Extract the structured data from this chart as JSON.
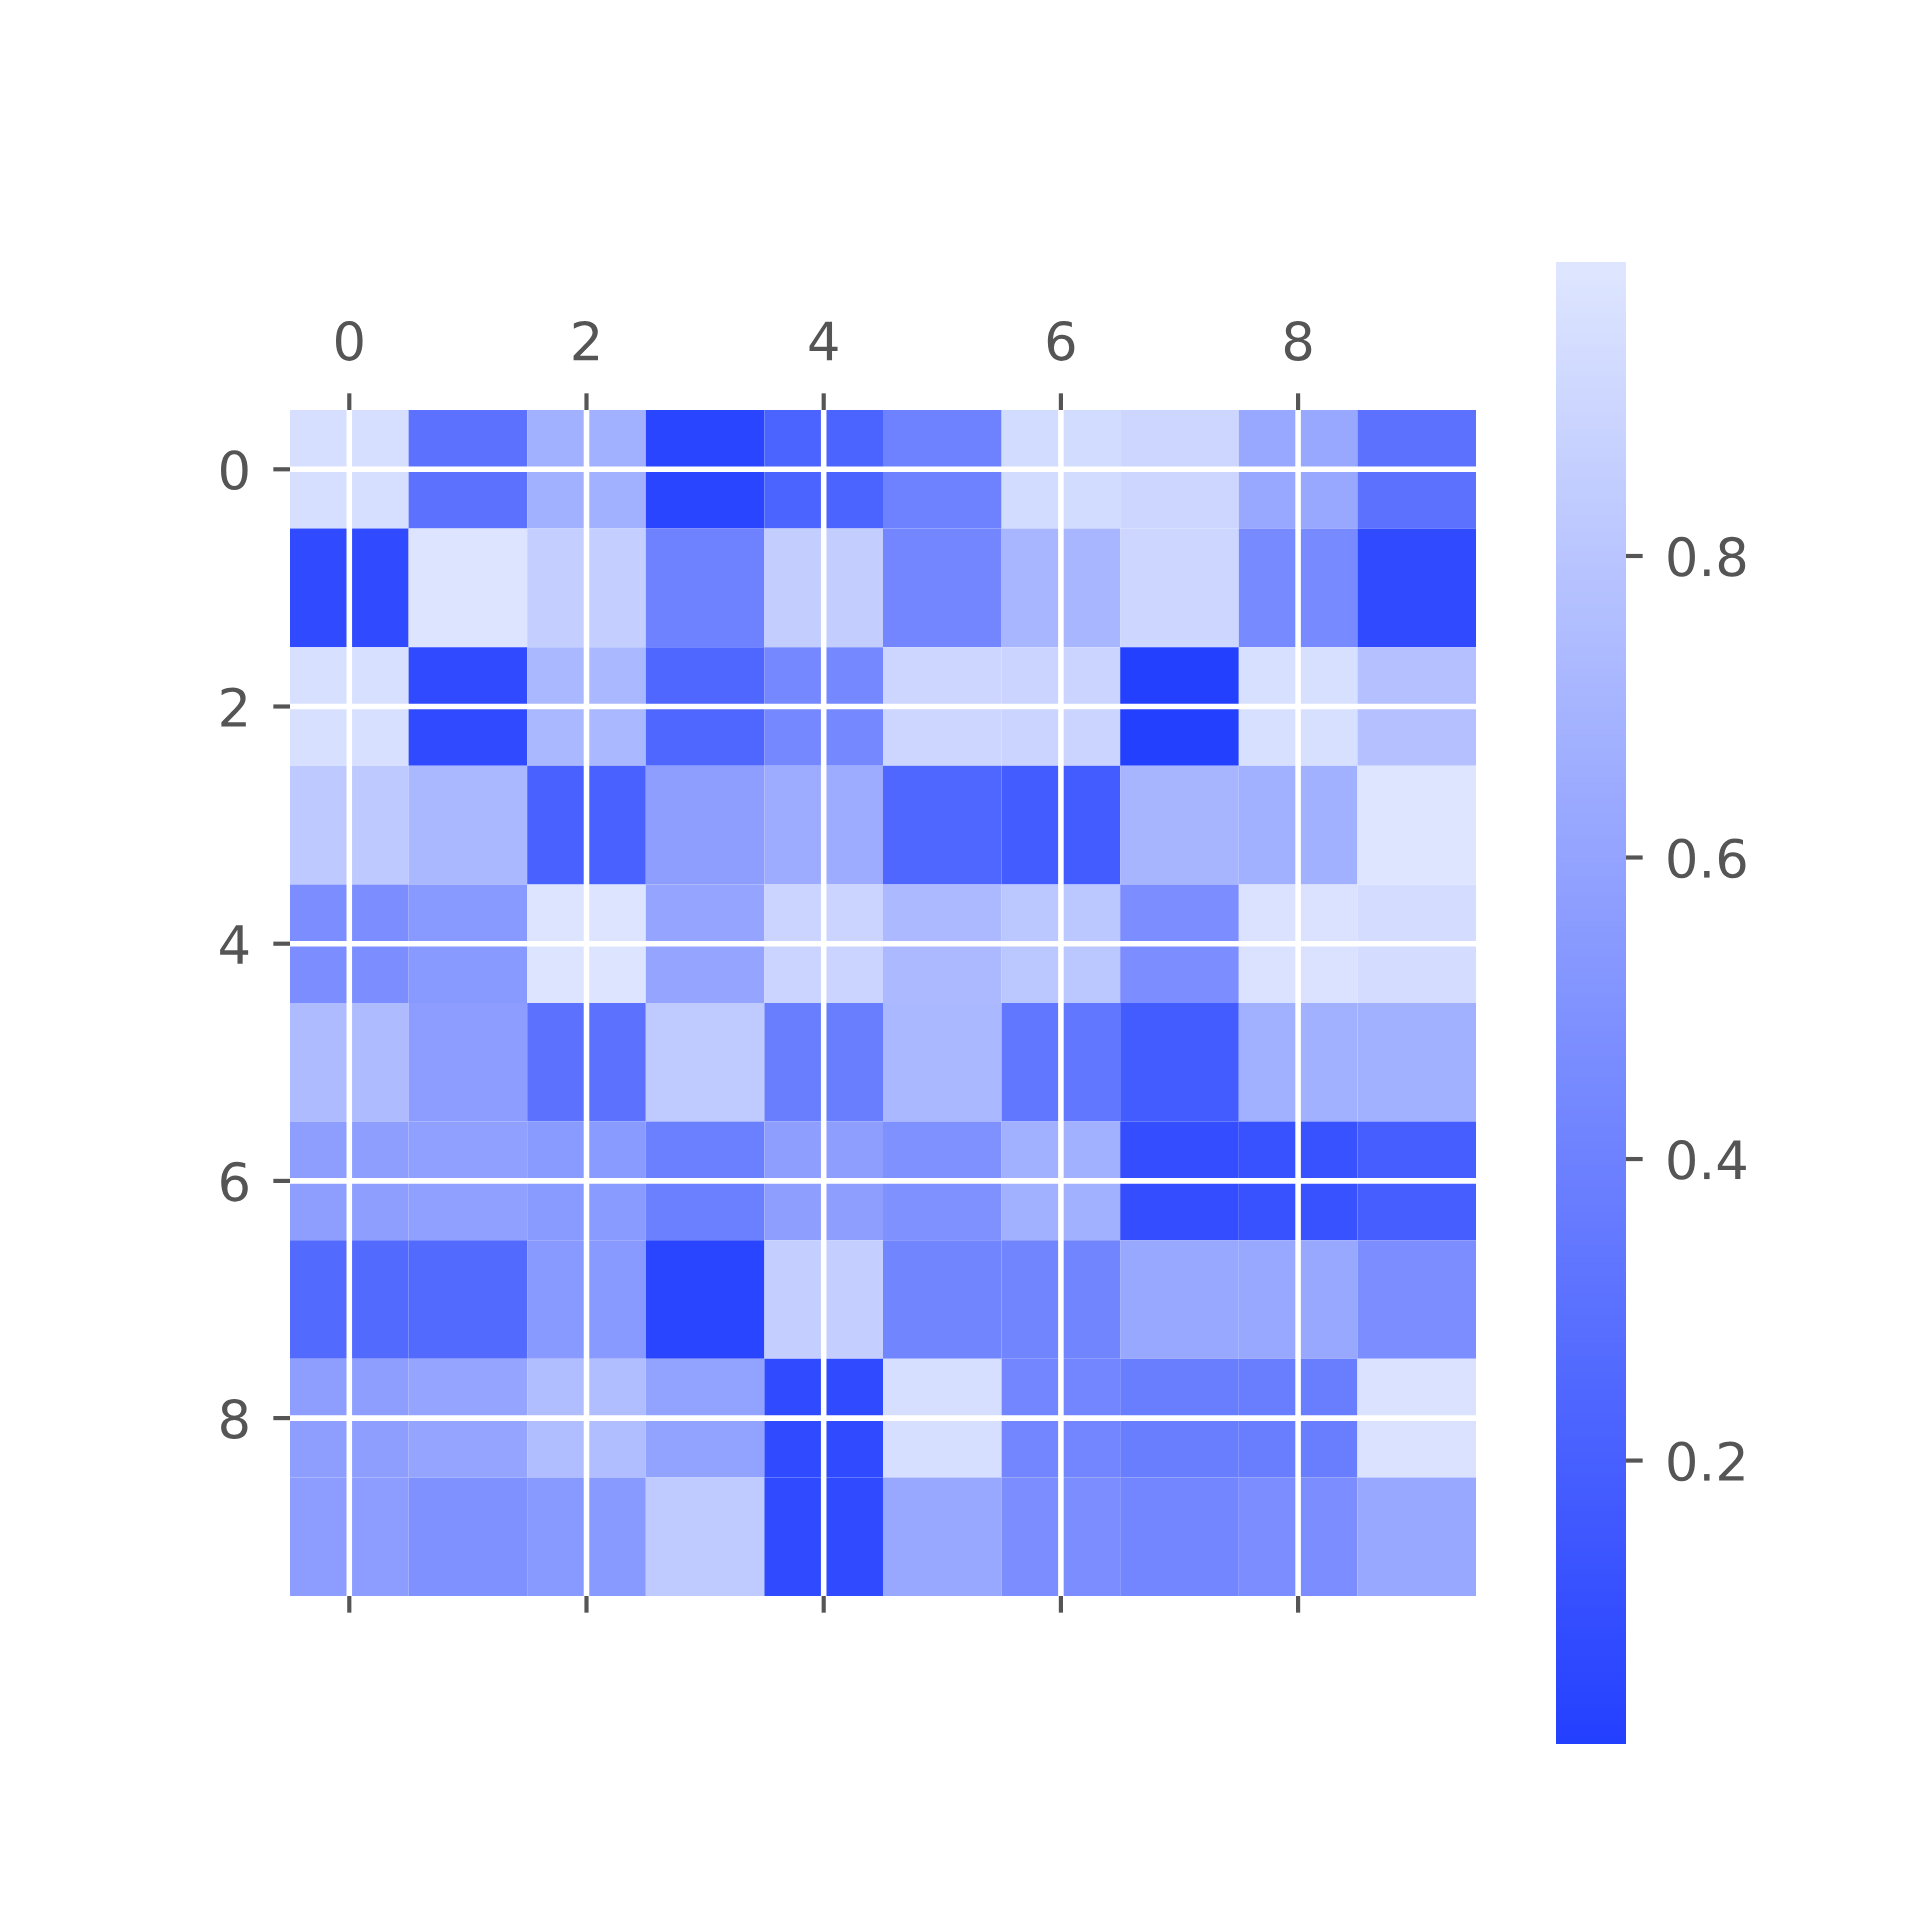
{
  "chart_data": {
    "type": "heatmap",
    "categories": [
      "0",
      null,
      "2",
      null,
      "4",
      null,
      "6",
      null,
      "8",
      null
    ],
    "y_categories": [
      "0",
      null,
      "2",
      null,
      "4",
      null,
      "6",
      null,
      "8",
      null
    ],
    "cells": [
      [
        0.95,
        0.31,
        0.68,
        0.04,
        0.22,
        0.4,
        0.93,
        0.9,
        0.63,
        0.31
      ],
      [
        0.07,
        0.98,
        0.86,
        0.4,
        0.85,
        0.43,
        0.71,
        0.9,
        0.45,
        0.07
      ],
      [
        0.96,
        0.08,
        0.72,
        0.24,
        0.44,
        0.9,
        0.89,
        0.012,
        0.96,
        0.77
      ],
      [
        0.82,
        0.72,
        0.21,
        0.57,
        0.65,
        0.24,
        0.18,
        0.7,
        0.68,
        0.99
      ],
      [
        0.47,
        0.54,
        0.98,
        0.6,
        0.89,
        0.73,
        0.81,
        0.47,
        0.97,
        0.94
      ],
      [
        0.74,
        0.56,
        0.31,
        0.83,
        0.38,
        0.72,
        0.34,
        0.18,
        0.68,
        0.68
      ],
      [
        0.57,
        0.58,
        0.55,
        0.39,
        0.57,
        0.49,
        0.68,
        0.1,
        0.12,
        0.19
      ],
      [
        0.26,
        0.26,
        0.54,
        0.04,
        0.86,
        0.42,
        0.42,
        0.63,
        0.63,
        0.47
      ],
      [
        0.57,
        0.61,
        0.75,
        0.59,
        0.07,
        0.95,
        0.43,
        0.38,
        0.38,
        0.97
      ],
      [
        0.56,
        0.49,
        0.54,
        0.83,
        0.07,
        0.63,
        0.47,
        0.43,
        0.47,
        0.63
      ]
    ],
    "clim": [
      0.012,
      0.995
    ],
    "cticks": [
      0.2,
      0.4,
      0.6,
      0.8
    ],
    "colors": [
      "#2440ff",
      "#dee6ff"
    ],
    "grid": true
  }
}
